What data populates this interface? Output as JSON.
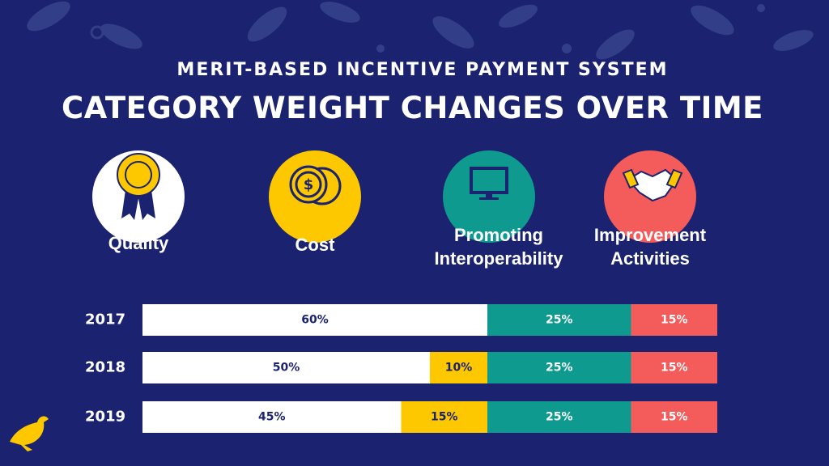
{
  "chart_data": {
    "type": "bar",
    "orientation": "horizontal",
    "stacked": true,
    "title": "MERIT-BASED INCENTIVE PAYMENT SYSTEM",
    "subtitle": "CATEGORY WEIGHT CHANGES OVER TIME",
    "categories": [
      "2017",
      "2018",
      "2019"
    ],
    "series": [
      {
        "name": "Quality",
        "color": "#ffffff",
        "values": [
          60,
          50,
          45
        ],
        "value_labels": [
          "60%",
          "50%",
          "45%"
        ]
      },
      {
        "name": "Cost",
        "color": "#fdc800",
        "values": [
          null,
          10,
          15
        ],
        "value_labels": [
          null,
          "10%",
          "15%"
        ]
      },
      {
        "name": "Promoting Interoperability",
        "color": "#0f9a8f",
        "values": [
          25,
          25,
          25
        ],
        "value_labels": [
          "25%",
          "25%",
          "25%"
        ]
      },
      {
        "name": "Improvement Activities",
        "color": "#f45b5b",
        "values": [
          15,
          15,
          15
        ],
        "value_labels": [
          "15%",
          "15%",
          "15%"
        ]
      }
    ]
  }
}
